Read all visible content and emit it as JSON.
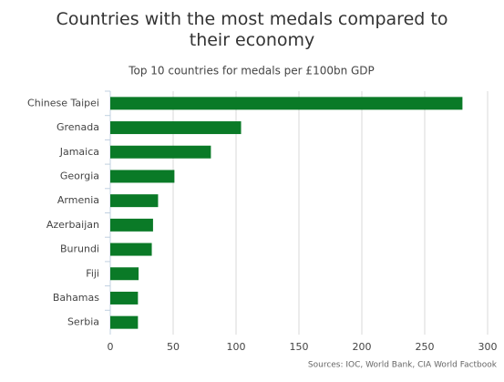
{
  "chart_data": {
    "type": "hbar",
    "title": "Countries with the most medals compared to their economy",
    "subtitle": "Top 10 countries for medals per £100bn GDP",
    "source": "Sources: IOC, World Bank, CIA World Factbook",
    "categories": [
      "Chinese Taipei",
      "Grenada",
      "Jamaica",
      "Georgia",
      "Armenia",
      "Azerbaijan",
      "Burundi",
      "Fiji",
      "Bahamas",
      "Serbia"
    ],
    "values": [
      280,
      104,
      80,
      51,
      38,
      34,
      33,
      22.5,
      22,
      22
    ],
    "color": "#0a7a27",
    "xlim": [
      0,
      300
    ],
    "xticks": [
      0,
      50,
      100,
      150,
      200,
      250,
      300
    ],
    "grid": true
  }
}
